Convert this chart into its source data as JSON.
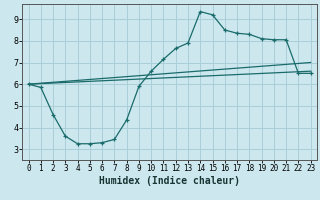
{
  "xlabel": "Humidex (Indice chaleur)",
  "background_color": "#cce8ee",
  "grid_color": "#aacfd8",
  "line_color": "#1a6b6b",
  "xlim": [
    -0.5,
    23.5
  ],
  "ylim": [
    2.5,
    9.7
  ],
  "xticks": [
    0,
    1,
    2,
    3,
    4,
    5,
    6,
    7,
    8,
    9,
    10,
    11,
    12,
    13,
    14,
    15,
    16,
    17,
    18,
    19,
    20,
    21,
    22,
    23
  ],
  "yticks": [
    3,
    4,
    5,
    6,
    7,
    8,
    9
  ],
  "curve_x": [
    0,
    1,
    2,
    3,
    4,
    5,
    6,
    7,
    8,
    9,
    10,
    11,
    12,
    13,
    14,
    15,
    16,
    17,
    18,
    19,
    20,
    21,
    22,
    23
  ],
  "curve_y": [
    6.0,
    5.85,
    4.6,
    3.6,
    3.25,
    3.25,
    3.3,
    3.45,
    4.35,
    5.9,
    6.6,
    7.15,
    7.65,
    7.9,
    9.35,
    9.2,
    8.5,
    8.35,
    8.3,
    8.1,
    8.05,
    8.05,
    6.5,
    6.5
  ],
  "line1_x": [
    0,
    23
  ],
  "line1_y": [
    6.0,
    6.6
  ],
  "line2_x": [
    0,
    23
  ],
  "line2_y": [
    6.0,
    7.0
  ]
}
